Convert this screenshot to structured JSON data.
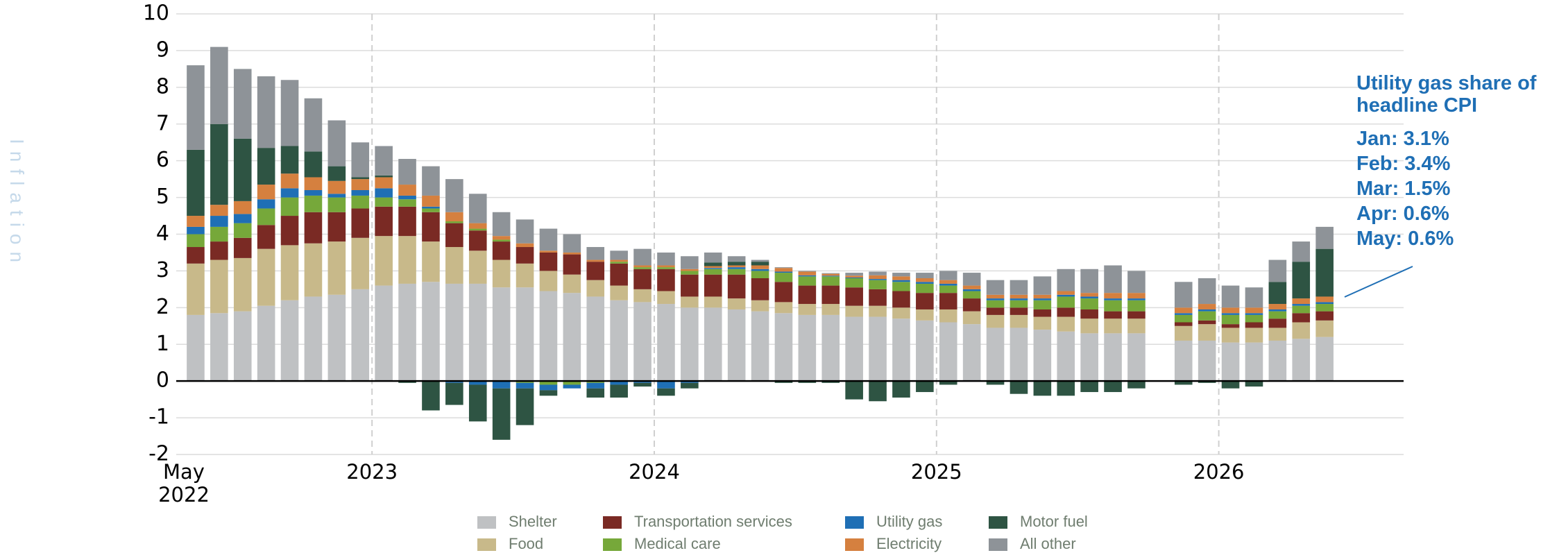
{
  "chart_data": {
    "type": "stacked_bar",
    "y_label": "Inflation",
    "categories": [
      "May 2022",
      null,
      null,
      null,
      null,
      null,
      null,
      null,
      "2023",
      null,
      null,
      null,
      null,
      null,
      null,
      null,
      null,
      null,
      null,
      null,
      "2024",
      null,
      null,
      null,
      null,
      null,
      null,
      null,
      null,
      null,
      null,
      null,
      "2025",
      null,
      null,
      null,
      null,
      null,
      null,
      null,
      null,
      null,
      null,
      null,
      "2026",
      null,
      null,
      null,
      null
    ],
    "series": [
      {
        "name": "Shelter",
        "color": "#bfc1c3",
        "values": [
          1.8,
          1.85,
          1.9,
          2.05,
          2.2,
          2.3,
          2.35,
          2.5,
          2.6,
          2.65,
          2.7,
          2.65,
          2.65,
          2.55,
          2.55,
          2.45,
          2.4,
          2.3,
          2.2,
          2.15,
          2.1,
          2.0,
          2.0,
          1.95,
          1.9,
          1.85,
          1.8,
          1.8,
          1.75,
          1.75,
          1.7,
          1.65,
          1.6,
          1.55,
          1.45,
          1.45,
          1.4,
          1.35,
          1.3,
          1.3,
          1.3,
          null,
          1.1,
          1.1,
          1.05,
          1.05,
          1.1,
          1.15,
          1.2
        ]
      },
      {
        "name": "Food",
        "color": "#c8b98a",
        "values": [
          1.4,
          1.45,
          1.45,
          1.55,
          1.5,
          1.45,
          1.45,
          1.4,
          1.35,
          1.3,
          1.1,
          1.0,
          0.9,
          0.75,
          0.65,
          0.55,
          0.5,
          0.45,
          0.4,
          0.35,
          0.35,
          0.3,
          0.3,
          0.3,
          0.3,
          0.3,
          0.3,
          0.3,
          0.3,
          0.3,
          0.3,
          0.3,
          0.35,
          0.35,
          0.35,
          0.35,
          0.35,
          0.4,
          0.4,
          0.4,
          0.4,
          null,
          0.4,
          0.45,
          0.4,
          0.4,
          0.35,
          0.45,
          0.45
        ]
      },
      {
        "name": "Transportation services",
        "color": "#7a2a24",
        "values": [
          0.45,
          0.5,
          0.55,
          0.65,
          0.8,
          0.85,
          0.8,
          0.8,
          0.8,
          0.8,
          0.8,
          0.65,
          0.55,
          0.5,
          0.45,
          0.5,
          0.55,
          0.5,
          0.6,
          0.55,
          0.6,
          0.6,
          0.6,
          0.65,
          0.6,
          0.55,
          0.5,
          0.5,
          0.5,
          0.45,
          0.45,
          0.45,
          0.45,
          0.35,
          0.2,
          0.2,
          0.2,
          0.25,
          0.25,
          0.2,
          0.2,
          null,
          0.1,
          0.1,
          0.1,
          0.15,
          0.25,
          0.25,
          0.25
        ]
      },
      {
        "name": "Medical care",
        "color": "#76a83a",
        "values": [
          0.35,
          0.4,
          0.4,
          0.45,
          0.5,
          0.45,
          0.4,
          0.35,
          0.25,
          0.2,
          0.1,
          0.05,
          0.05,
          0.05,
          -0.05,
          -0.1,
          -0.1,
          -0.05,
          0.05,
          0.05,
          0.05,
          0.1,
          0.15,
          0.15,
          0.2,
          0.25,
          0.25,
          0.25,
          0.25,
          0.25,
          0.25,
          0.25,
          0.2,
          0.2,
          0.2,
          0.2,
          0.25,
          0.3,
          0.3,
          0.3,
          0.3,
          null,
          0.2,
          0.25,
          0.25,
          0.2,
          0.2,
          0.2,
          0.2
        ]
      },
      {
        "name": "Utility gas",
        "color": "#1f6fb5",
        "values": [
          0.2,
          0.3,
          0.25,
          0.25,
          0.25,
          0.15,
          0.1,
          0.15,
          0.25,
          0.1,
          0.05,
          -0.05,
          -0.1,
          -0.2,
          -0.15,
          -0.15,
          -0.1,
          -0.15,
          -0.1,
          -0.05,
          -0.2,
          -0.05,
          0.03,
          0.05,
          0.05,
          0.03,
          0.03,
          0.02,
          0.02,
          0.03,
          0.05,
          0.05,
          0.05,
          0.05,
          0.05,
          0.05,
          0.05,
          0.05,
          0.05,
          0.05,
          0.05,
          null,
          0.05,
          0.05,
          0.05,
          0.05,
          0.05,
          0.05,
          0.05
        ]
      },
      {
        "name": "Electricity",
        "color": "#d5803f",
        "values": [
          0.3,
          0.3,
          0.35,
          0.4,
          0.4,
          0.35,
          0.35,
          0.3,
          0.3,
          0.3,
          0.3,
          0.25,
          0.15,
          0.1,
          0.1,
          0.05,
          0.05,
          0.05,
          0.05,
          0.05,
          0.05,
          0.05,
          0.05,
          0.05,
          0.1,
          0.1,
          0.1,
          0.05,
          0.05,
          0.1,
          0.1,
          0.1,
          0.1,
          0.1,
          0.1,
          0.1,
          0.1,
          0.1,
          0.1,
          0.15,
          0.15,
          null,
          0.15,
          0.15,
          0.15,
          0.15,
          0.15,
          0.15,
          0.15
        ]
      },
      {
        "name": "Motor fuel",
        "color": "#2e5443",
        "values": [
          1.8,
          2.2,
          1.7,
          1.0,
          0.75,
          0.7,
          0.4,
          0.05,
          0.05,
          -0.05,
          -0.8,
          -0.6,
          -1.0,
          -1.4,
          -1.0,
          -0.15,
          0,
          -0.25,
          -0.35,
          -0.1,
          -0.2,
          -0.15,
          0.1,
          0.1,
          0.1,
          -0.05,
          -0.05,
          -0.05,
          -0.5,
          -0.55,
          -0.45,
          -0.3,
          -0.1,
          0,
          -0.1,
          -0.35,
          -0.4,
          -0.4,
          -0.3,
          -0.3,
          -0.2,
          null,
          -0.1,
          -0.05,
          -0.2,
          -0.15,
          0.6,
          1.0,
          1.3
        ]
      },
      {
        "name": "All other",
        "color": "#8e9398",
        "values": [
          2.3,
          2.1,
          1.9,
          1.95,
          1.8,
          1.45,
          1.25,
          0.95,
          0.8,
          0.7,
          0.8,
          0.9,
          0.8,
          0.65,
          0.65,
          0.6,
          0.5,
          0.35,
          0.25,
          0.45,
          0.35,
          0.35,
          0.27,
          0.15,
          0.05,
          0.02,
          0.02,
          0.02,
          0.08,
          0.1,
          0.1,
          0.15,
          0.25,
          0.35,
          0.4,
          0.4,
          0.5,
          0.6,
          0.65,
          0.75,
          0.6,
          null,
          0.7,
          0.7,
          0.6,
          0.55,
          0.6,
          0.55,
          0.6
        ]
      }
    ],
    "ylim": [
      -2,
      10
    ],
    "yticks": [
      -2,
      -1,
      0,
      1,
      2,
      3,
      4,
      5,
      6,
      7,
      8,
      9,
      10
    ],
    "grid": true,
    "annotation": {
      "title": "Utility gas share of headline CPI",
      "lines": [
        "Jan: 3.1%",
        "Feb: 3.4%",
        "Mar: 1.5%",
        "Apr: 0.6%",
        "May: 0.6%"
      ]
    }
  }
}
